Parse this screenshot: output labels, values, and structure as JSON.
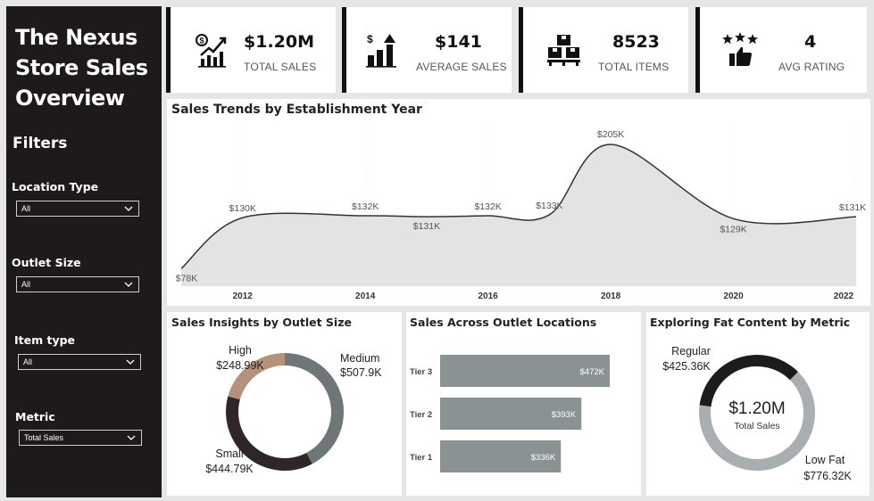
{
  "sidebar": {
    "title_lines": [
      "The Nexus",
      "Store Sales",
      "Overview"
    ],
    "filters_heading": "Filters",
    "filters": [
      {
        "label": "Location Type",
        "value": "All"
      },
      {
        "label": "Outlet Size",
        "value": "All"
      },
      {
        "label": "Item type",
        "value": "All"
      },
      {
        "label": "Metric",
        "value": "Total Sales"
      }
    ]
  },
  "kpis": [
    {
      "value": "$1.20M",
      "label": "TOTAL SALES",
      "icon": "sales-chart-icon"
    },
    {
      "value": "$141",
      "label": "AVERAGE SALES",
      "icon": "average-sales-icon"
    },
    {
      "value": "8523",
      "label": "TOTAL ITEMS",
      "icon": "boxes-icon"
    },
    {
      "value": "4",
      "label": "AVG RATING",
      "icon": "rating-thumbs-up-icon"
    }
  ],
  "colors": {
    "sidebar": "#1f1a1a",
    "accent_gray": "#6e7678",
    "tan": "#b4927a",
    "dark": "#2f2727",
    "bar": "#8a9293",
    "area": "#e3e3e3"
  },
  "chart_data": [
    {
      "type": "area",
      "title": "Sales Trends by Establishment Year",
      "x": [
        2011,
        2012,
        2014,
        2015,
        2016,
        2017,
        2018,
        2020,
        2022
      ],
      "values": [
        78,
        130,
        132,
        131,
        132,
        133,
        205,
        129,
        131
      ],
      "data_labels": [
        "$78K",
        "$130K",
        "$132K",
        "$131K",
        "$132K",
        "$133K",
        "$205K",
        "$129K",
        "$131K"
      ],
      "x_ticks": [
        "2012",
        "2014",
        "2016",
        "2018",
        "2020",
        "2022"
      ],
      "ylim": [
        60,
        215
      ]
    },
    {
      "type": "pie",
      "title": "Sales Insights by Outlet Size",
      "categories": [
        "Medium",
        "Small",
        "High"
      ],
      "values": [
        507.9,
        444.79,
        248.99
      ],
      "value_labels": [
        "$507.9K",
        "$444.79K",
        "$248.99K"
      ],
      "colors": [
        "#6e7678",
        "#2f2727",
        "#b4927a"
      ]
    },
    {
      "type": "bar",
      "title": "Sales Across Outlet Locations",
      "categories": [
        "Tier 3",
        "Tier 2",
        "Tier 1"
      ],
      "values": [
        472,
        393,
        336
      ],
      "value_labels": [
        "$472K",
        "$393K",
        "$336K"
      ]
    },
    {
      "type": "pie",
      "title": "Exploring Fat Content by Metric",
      "categories": [
        "Low Fat",
        "Regular"
      ],
      "values": [
        776.32,
        425.36
      ],
      "value_labels": [
        "$776.32K",
        "$425.36K"
      ],
      "center_value": "$1.20M",
      "center_label": "Total Sales",
      "colors": [
        "#a9afb0",
        "#1c1c1c"
      ]
    }
  ]
}
